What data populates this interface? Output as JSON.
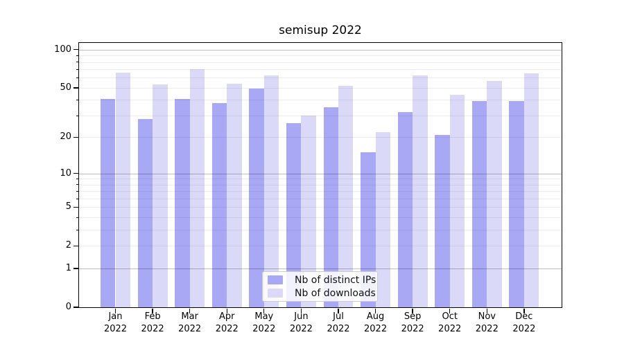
{
  "title": "semisup 2022",
  "colors": {
    "background": "#ffffff",
    "distinct_ips_bar": "#a8a8f5",
    "downloads_bar": "#dadaf8",
    "grid_major": "rgba(0,0,0,0.25)",
    "grid_minor": "rgba(0,0,0,0.07)",
    "axis": "#000000"
  },
  "legend": {
    "items": [
      {
        "label": "Nb of distinct IPs",
        "color": "#a8a8f5"
      },
      {
        "label": "Nb of downloads",
        "color": "#dadaf8"
      }
    ]
  },
  "chart_data": {
    "type": "bar",
    "title": "semisup 2022",
    "categories": [
      "Jan",
      "Feb",
      "Mar",
      "Apr",
      "May",
      "Jun",
      "Jul",
      "Aug",
      "Sep",
      "Oct",
      "Nov",
      "Dec"
    ],
    "x_tick_year": "2022",
    "series": [
      {
        "name": "Nb of distinct IPs",
        "color": "#a8a8f5",
        "values": [
          41,
          28,
          41,
          38,
          49,
          26,
          35,
          15,
          32,
          21,
          39,
          39
        ]
      },
      {
        "name": "Nb of downloads",
        "color": "#dadaf8",
        "values": [
          66,
          53,
          70,
          54,
          63,
          30,
          52,
          22,
          63,
          44,
          57,
          65
        ]
      }
    ],
    "xlabel": "",
    "ylabel": "",
    "yscale": "symlog (log10 of 1+value)",
    "ylim": [
      0,
      113
    ],
    "xlim": [
      -0.98,
      12.01
    ],
    "y_ticks": [
      0,
      1,
      2,
      5,
      10,
      20,
      50,
      100
    ],
    "y_grid_major": [
      1,
      10,
      100
    ],
    "y_grid_minor": [
      2,
      3,
      4,
      5,
      6,
      7,
      8,
      9,
      20,
      30,
      40,
      50,
      60,
      70,
      80,
      90
    ],
    "grid": true,
    "bar_width": 0.4,
    "legend_position": "lower center"
  }
}
